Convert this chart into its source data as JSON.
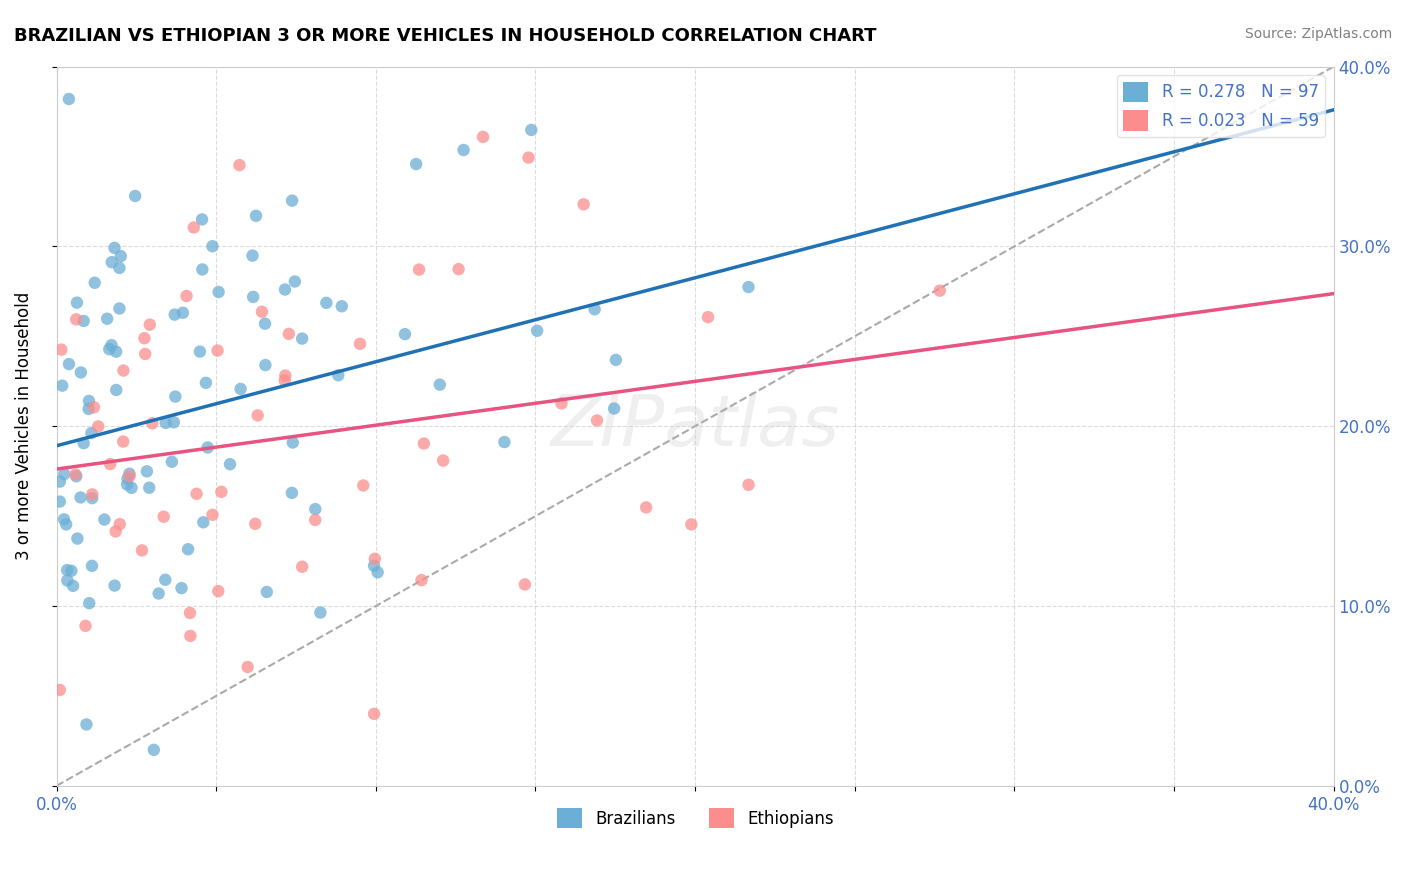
{
  "title": "BRAZILIAN VS ETHIOPIAN 3 OR MORE VEHICLES IN HOUSEHOLD CORRELATION CHART",
  "source": "Source: ZipAtlas.com",
  "ylabel": "3 or more Vehicles in Household",
  "watermark": "ZIPatlas",
  "legend_blue_label": "R = 0.278   N = 97",
  "legend_pink_label": "R = 0.023   N = 59",
  "legend_bottom_blue": "Brazilians",
  "legend_bottom_pink": "Ethiopians",
  "blue_color": "#6baed6",
  "pink_color": "#fc8d8d",
  "blue_line_color": "#2171b5",
  "pink_line_color": "#e75480",
  "dashed_line_color": "#aaaaaa",
  "background_color": "#ffffff",
  "grid_color": "#cccccc",
  "xlim": [
    0.0,
    0.4
  ],
  "ylim": [
    0.0,
    0.4
  ],
  "brazil_R": 0.278,
  "brazil_N": 97,
  "ethiopia_R": 0.023,
  "ethiopia_N": 59,
  "title_fontsize": 13,
  "source_fontsize": 10,
  "tick_label_color": "#4472c4",
  "tick_label_fontsize": 12,
  "ylabel_fontsize": 12,
  "legend_fontsize": 12,
  "watermark_fontsize": 52,
  "watermark_color": "lightgray",
  "watermark_alpha": 0.35
}
